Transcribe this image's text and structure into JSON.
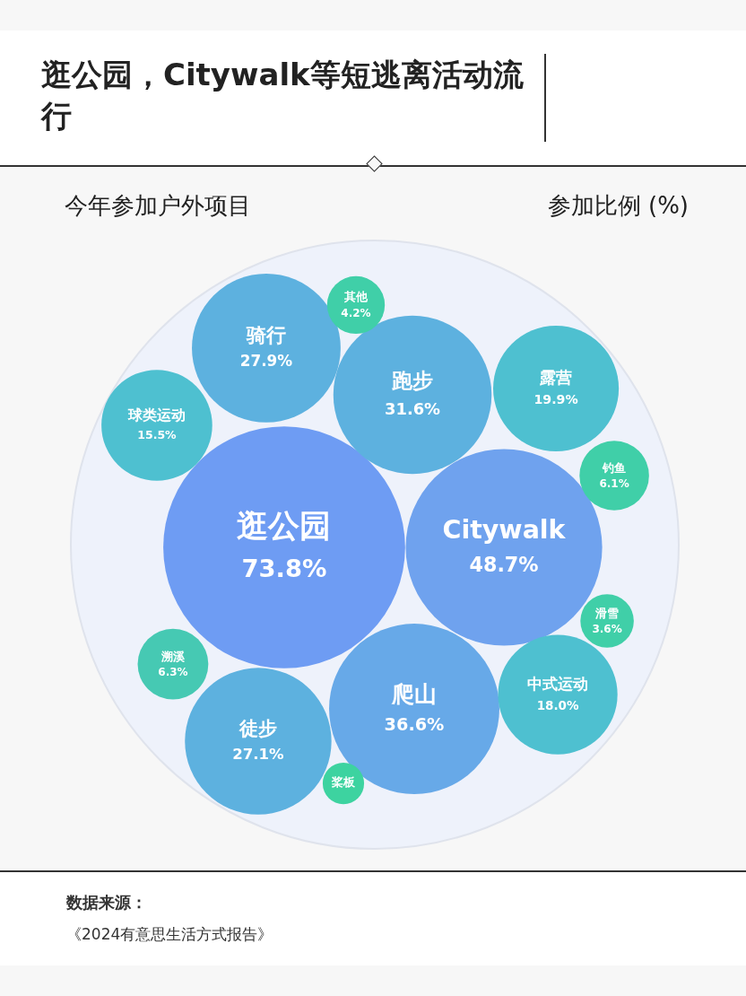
{
  "chart_data": {
    "type": "other",
    "title": "逛公园，Citywalk等短逃离活动流行",
    "subtitle": "今年参加户外项目",
    "ylabel": "参加比例 (%)",
    "categories": [
      "逛公园",
      "Citywalk",
      "爬山",
      "跑步",
      "骑行",
      "徒步",
      "露营",
      "中式运动",
      "球类运动",
      "溯溪",
      "钓鱼",
      "其他",
      "滑雪",
      "桨板"
    ],
    "values": [
      73.8,
      48.7,
      36.6,
      31.6,
      27.9,
      27.1,
      19.9,
      18.0,
      15.5,
      6.3,
      6.1,
      4.2,
      3.6,
      null
    ],
    "value_labels": [
      "73.8%",
      "48.7%",
      "36.6%",
      "31.6%",
      "27.9%",
      "27.1%",
      "19.9%",
      "18.0%",
      "15.5%",
      "6.3%",
      "6.1%",
      "4.2%",
      "3.6%",
      null
    ],
    "colors": [
      "#6e9cf3",
      "#6fa2ee",
      "#67a9e8",
      "#5db1df",
      "#5db1df",
      "#5db1df",
      "#4ec0d0",
      "#4ec0d0",
      "#4ec0d0",
      "#46c9b3",
      "#40cfa8",
      "#40cfa8",
      "#40cfa8",
      "#3dd3a0"
    ],
    "annotations": [
      "数据来源：",
      "《2024有意思生活方式报告》"
    ]
  }
}
